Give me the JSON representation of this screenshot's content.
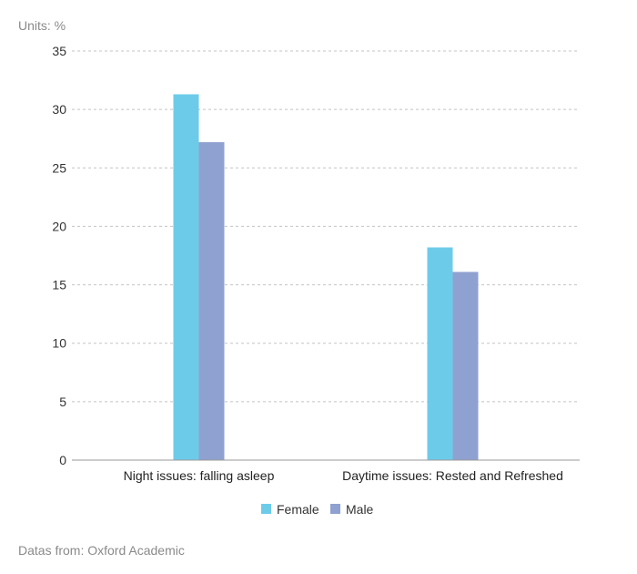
{
  "units_label": "Units: %",
  "source_note": "Datas from: Oxford Academic",
  "chart_data": {
    "type": "bar",
    "title": "",
    "xlabel": "",
    "ylabel": "Units: %",
    "ylim": [
      0,
      35
    ],
    "yticks": [
      0,
      5,
      10,
      15,
      20,
      25,
      30,
      35
    ],
    "grid": true,
    "legend_position": "bottom-center",
    "categories": [
      "Night issues: falling asleep",
      "Daytime issues: Rested and Refreshed"
    ],
    "series": [
      {
        "name": "Female",
        "color": "#6dcbea",
        "values": [
          31.3,
          18.2
        ]
      },
      {
        "name": "Male",
        "color": "#8fa1d0",
        "values": [
          27.2,
          16.1
        ]
      }
    ]
  }
}
